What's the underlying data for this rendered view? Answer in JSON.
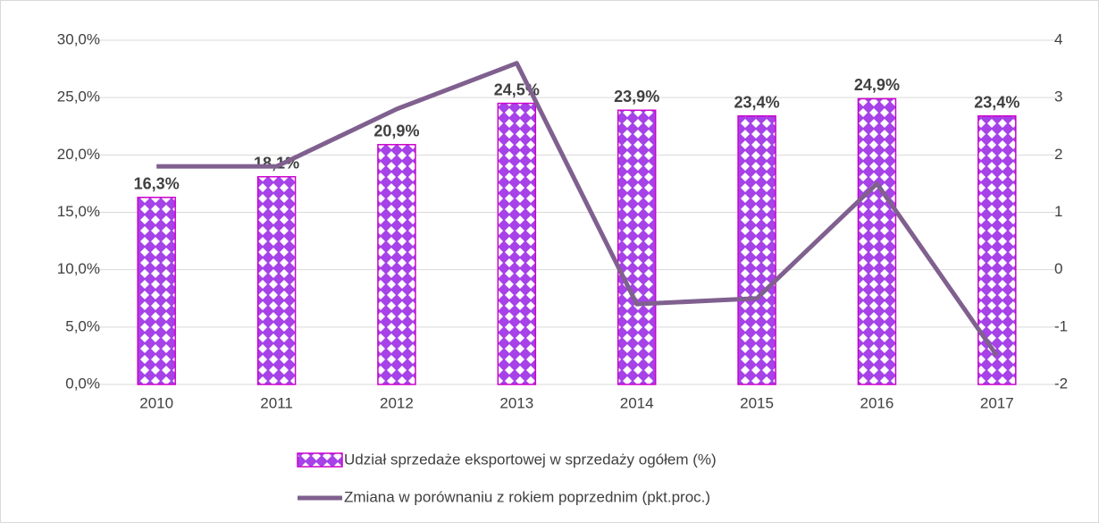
{
  "chart_data": {
    "type": "bar",
    "categories": [
      "2010",
      "2011",
      "2012",
      "2013",
      "2014",
      "2015",
      "2016",
      "2017"
    ],
    "series": [
      {
        "name": "Udział sprzedaże eksportowej w sprzedaży ogółem (%)",
        "type": "bar",
        "color": "#a642e8",
        "edge_color": "#cc00cc",
        "values": [
          16.3,
          18.1,
          20.9,
          24.5,
          23.9,
          23.4,
          24.9,
          23.4
        ],
        "value_labels": [
          "16,3%",
          "18,1%",
          "20,9%",
          "24,5%",
          "23,9%",
          "23,4%",
          "24,9%",
          "23,4%"
        ]
      },
      {
        "name": "Zmiana w porównaniu z rokiem poprzednim (pkt.proc.)",
        "type": "line",
        "color": "#80608f",
        "axis": "y2",
        "values": [
          1.8,
          1.8,
          2.8,
          3.6,
          -0.6,
          -0.5,
          1.5,
          -1.5
        ]
      }
    ],
    "ylim": [
      0,
      30
    ],
    "yticks": [
      {
        "value": 0,
        "label": "0,0%"
      },
      {
        "value": 5,
        "label": "5,0%"
      },
      {
        "value": 10,
        "label": "10,0%"
      },
      {
        "value": 15,
        "label": "15,0%"
      },
      {
        "value": 20,
        "label": "20,0%"
      },
      {
        "value": 25,
        "label": "25,0%"
      },
      {
        "value": 30,
        "label": "30,0%"
      }
    ],
    "y2lim": [
      -2,
      4
    ],
    "y2ticks": [
      -2,
      -1,
      0,
      1,
      2,
      3,
      4
    ],
    "grid": true,
    "legend": "bottom"
  }
}
